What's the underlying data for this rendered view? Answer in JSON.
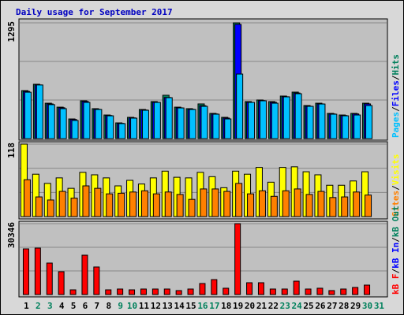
{
  "title": "Daily usage for September 2017",
  "categories": [
    "1",
    "2",
    "3",
    "4",
    "5",
    "6",
    "7",
    "8",
    "9",
    "10",
    "11",
    "12",
    "13",
    "14",
    "15",
    "16",
    "17",
    "18",
    "19",
    "20",
    "21",
    "22",
    "23",
    "24",
    "25",
    "26",
    "27",
    "28",
    "29",
    "30",
    "31"
  ],
  "category_colors": [
    "#000000",
    "#00805c",
    "#00805c",
    "#000000",
    "#000000",
    "#000000",
    "#000000",
    "#000000",
    "#00805c",
    "#00805c",
    "#000000",
    "#000000",
    "#000000",
    "#000000",
    "#000000",
    "#00805c",
    "#00805c",
    "#000000",
    "#000000",
    "#000000",
    "#000000",
    "#000000",
    "#00805c",
    "#00805c",
    "#000000",
    "#000000",
    "#000000",
    "#000000",
    "#000000",
    "#00805c",
    "#00805c"
  ],
  "legend_separator": "/",
  "chart_data": [
    {
      "type": "bar",
      "ylim": [
        0,
        1295
      ],
      "yticks": [
        1295
      ],
      "series": [
        {
          "name": "Hits",
          "color": "#00805c",
          "values": [
            537,
            608,
            396,
            352,
            220,
            423,
            335,
            264,
            176,
            238,
            326,
            414,
            485,
            352,
            335,
            388,
            282,
            238,
            1295,
            414,
            432,
            414,
            476,
            520,
            370,
            396,
            282,
            264,
            282,
            396,
            null
          ]
        },
        {
          "name": "Files",
          "color": "#0000ff",
          "values": [
            528,
            600,
            388,
            345,
            214,
            416,
            328,
            258,
            170,
            232,
            320,
            406,
            460,
            344,
            328,
            368,
            276,
            230,
            1278,
            406,
            425,
            406,
            468,
            510,
            362,
            388,
            276,
            258,
            276,
            388,
            null
          ]
        },
        {
          "name": "Pages",
          "color": "#00c0ff",
          "values": [
            519,
            600,
            380,
            335,
            203,
            405,
            326,
            255,
            168,
            229,
            317,
            405,
            458,
            343,
            326,
            361,
            273,
            220,
            722,
            405,
            423,
            396,
            467,
            502,
            361,
            387,
            273,
            255,
            264,
            370,
            null
          ]
        }
      ]
    },
    {
      "type": "bar",
      "ylim": [
        0,
        118
      ],
      "yticks": [
        118
      ],
      "series": [
        {
          "name": "Visits",
          "color": "#ffff00",
          "values": [
            118,
            69,
            54,
            63,
            46,
            72,
            68,
            63,
            50,
            59,
            53,
            63,
            74,
            64,
            63,
            72,
            65,
            47,
            74,
            69,
            80,
            56,
            80,
            81,
            73,
            68,
            51,
            51,
            58,
            73,
            null
          ]
        },
        {
          "name": "Sites",
          "color": "#ff8000",
          "values": [
            60,
            32,
            27,
            41,
            30,
            50,
            46,
            37,
            38,
            40,
            42,
            37,
            40,
            36,
            28,
            45,
            45,
            41,
            54,
            37,
            42,
            33,
            42,
            45,
            36,
            41,
            31,
            32,
            40,
            35,
            null
          ]
        }
      ]
    },
    {
      "type": "bar",
      "ylim": [
        0,
        30346
      ],
      "yticks": [
        30346
      ],
      "series": [
        {
          "name": "kB F",
          "color": "#ff0000",
          "values": [
            19550,
            19890,
            13480,
            9780,
            2020,
            16850,
            11800,
            2020,
            2360,
            2020,
            2360,
            2360,
            2360,
            1690,
            2360,
            4720,
            6400,
            2700,
            30346,
            5060,
            5060,
            2360,
            2360,
            5730,
            2360,
            2700,
            1690,
            2360,
            3030,
            4040,
            null
          ]
        }
      ],
      "legend_extra": [
        {
          "name": "kB In",
          "color": "#0000ff"
        },
        {
          "name": "kB Out",
          "color": "#00805c"
        }
      ]
    }
  ]
}
